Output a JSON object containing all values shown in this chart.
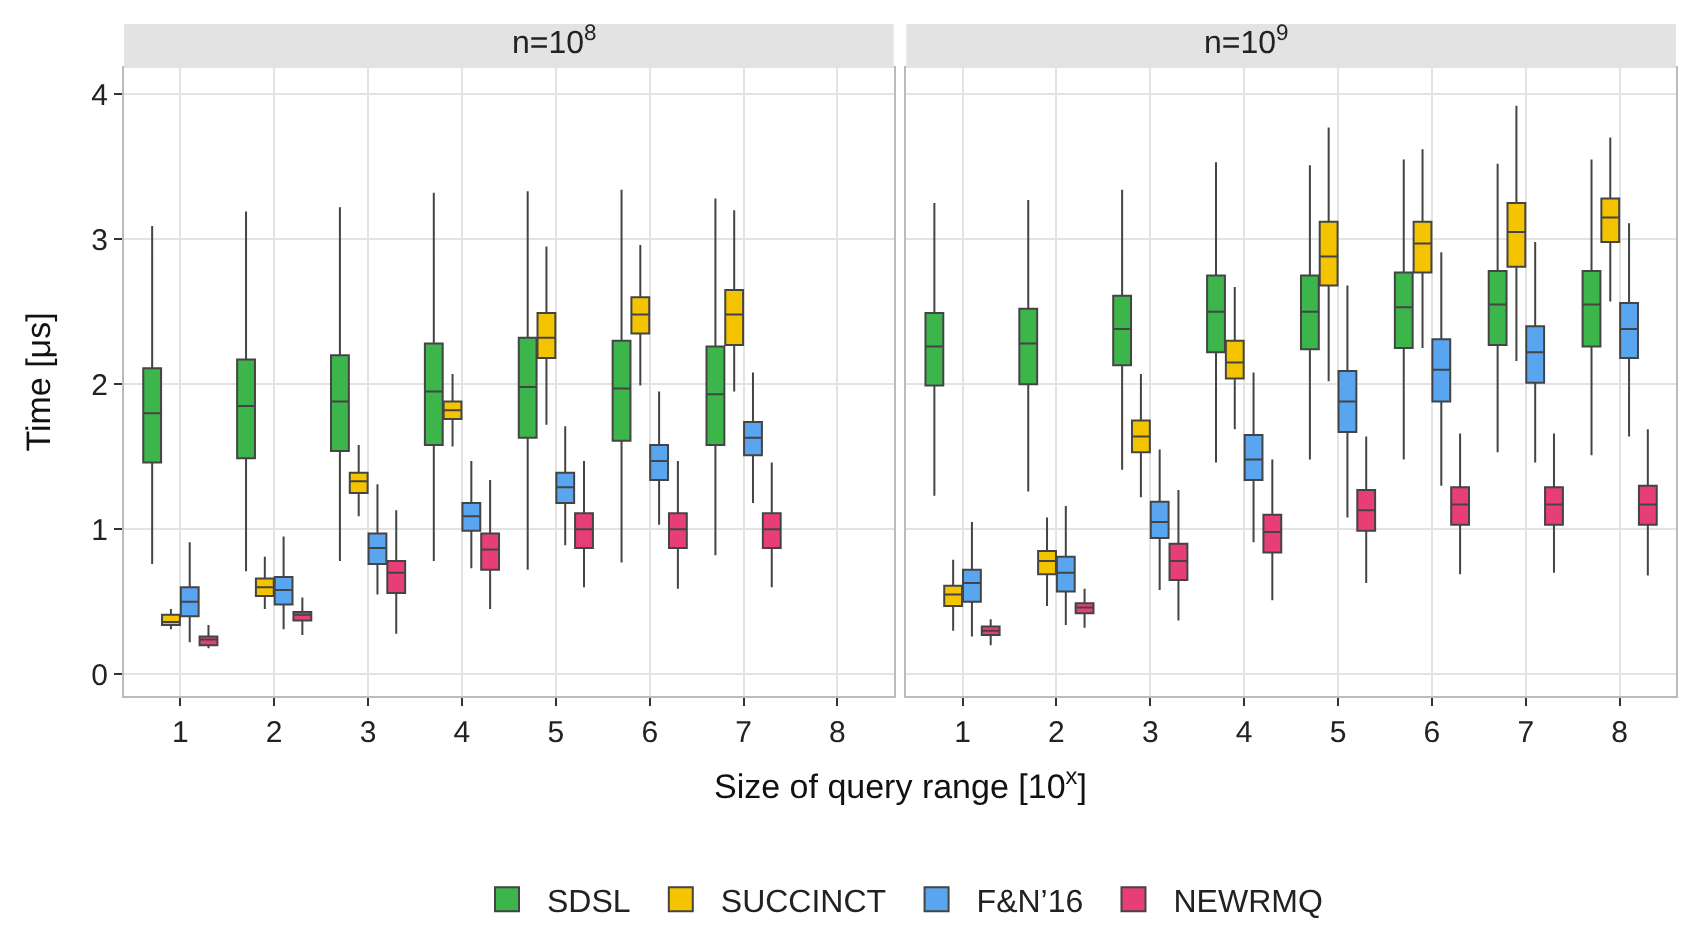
{
  "chart_data": [
    {
      "type": "box",
      "title": "n=10$^{8}$",
      "xlabel": "Size of query range [10$^{x}$]",
      "ylabel": "Time [μs]",
      "categories": [
        "1",
        "2",
        "3",
        "4",
        "5",
        "6",
        "7",
        "8"
      ],
      "ylim": [
        -0.15,
        4.18
      ],
      "yticks": [
        0,
        1,
        2,
        3,
        4
      ],
      "grid": true,
      "legend": "bottom",
      "series": [
        {
          "name": "SDSL",
          "color": "#3cb54a",
          "boxes": [
            {
              "low": 0.76,
              "q1": 1.46,
              "median": 1.8,
              "q3": 2.11,
              "high": 3.09
            },
            {
              "low": 0.71,
              "q1": 1.49,
              "median": 1.85,
              "q3": 2.17,
              "high": 3.19
            },
            {
              "low": 0.78,
              "q1": 1.54,
              "median": 1.88,
              "q3": 2.2,
              "high": 3.22
            },
            {
              "low": 0.78,
              "q1": 1.58,
              "median": 1.95,
              "q3": 2.28,
              "high": 3.32
            },
            {
              "low": 0.72,
              "q1": 1.63,
              "median": 1.98,
              "q3": 2.32,
              "high": 3.33
            },
            {
              "low": 0.77,
              "q1": 1.61,
              "median": 1.97,
              "q3": 2.3,
              "high": 3.34
            },
            {
              "low": 0.82,
              "q1": 1.58,
              "median": 1.93,
              "q3": 2.26,
              "high": 3.28
            },
            null
          ]
        },
        {
          "name": "SUCCINCT",
          "color": "#f5c400",
          "boxes": [
            {
              "low": 0.31,
              "q1": 0.34,
              "median": 0.36,
              "q3": 0.41,
              "high": 0.45
            },
            {
              "low": 0.45,
              "q1": 0.54,
              "median": 0.6,
              "q3": 0.66,
              "high": 0.81
            },
            {
              "low": 1.09,
              "q1": 1.25,
              "median": 1.33,
              "q3": 1.39,
              "high": 1.58
            },
            {
              "low": 1.57,
              "q1": 1.76,
              "median": 1.82,
              "q3": 1.88,
              "high": 2.07
            },
            {
              "low": 1.72,
              "q1": 2.18,
              "median": 2.32,
              "q3": 2.49,
              "high": 2.95
            },
            {
              "low": 1.99,
              "q1": 2.35,
              "median": 2.48,
              "q3": 2.6,
              "high": 2.96
            },
            {
              "low": 1.95,
              "q1": 2.27,
              "median": 2.48,
              "q3": 2.65,
              "high": 3.2
            },
            null
          ]
        },
        {
          "name": "F&N’16",
          "color": "#5aa5f0",
          "boxes": [
            {
              "low": 0.22,
              "q1": 0.4,
              "median": 0.5,
              "q3": 0.6,
              "high": 0.91
            },
            {
              "low": 0.31,
              "q1": 0.48,
              "median": 0.58,
              "q3": 0.67,
              "high": 0.95
            },
            {
              "low": 0.55,
              "q1": 0.76,
              "median": 0.87,
              "q3": 0.97,
              "high": 1.31
            },
            {
              "low": 0.73,
              "q1": 0.99,
              "median": 1.09,
              "q3": 1.18,
              "high": 1.47
            },
            {
              "low": 0.89,
              "q1": 1.18,
              "median": 1.29,
              "q3": 1.39,
              "high": 1.71
            },
            {
              "low": 1.03,
              "q1": 1.34,
              "median": 1.47,
              "q3": 1.58,
              "high": 1.95
            },
            {
              "low": 1.18,
              "q1": 1.51,
              "median": 1.63,
              "q3": 1.74,
              "high": 2.08
            },
            null
          ]
        },
        {
          "name": "NEWRMQ",
          "color": "#e83e76",
          "boxes": [
            {
              "low": 0.18,
              "q1": 0.2,
              "median": 0.24,
              "q3": 0.26,
              "high": 0.34
            },
            {
              "low": 0.27,
              "q1": 0.37,
              "median": 0.41,
              "q3": 0.43,
              "high": 0.53
            },
            {
              "low": 0.28,
              "q1": 0.56,
              "median": 0.7,
              "q3": 0.78,
              "high": 1.13
            },
            {
              "low": 0.45,
              "q1": 0.72,
              "median": 0.86,
              "q3": 0.97,
              "high": 1.34
            },
            {
              "low": 0.6,
              "q1": 0.87,
              "median": 1.0,
              "q3": 1.11,
              "high": 1.47
            },
            {
              "low": 0.59,
              "q1": 0.87,
              "median": 1.0,
              "q3": 1.11,
              "high": 1.47
            },
            {
              "low": 0.6,
              "q1": 0.87,
              "median": 1.0,
              "q3": 1.11,
              "high": 1.46
            },
            null
          ]
        }
      ]
    },
    {
      "type": "box",
      "title": "n=10$^{9}$",
      "categories": [
        "1",
        "2",
        "3",
        "4",
        "5",
        "6",
        "7",
        "8"
      ],
      "ylim": [
        -0.15,
        4.18
      ],
      "yticks": [
        0,
        1,
        2,
        3,
        4
      ],
      "grid": true,
      "tick_labels": "x",
      "series": [
        {
          "color": "#3cb54a",
          "boxes": [
            {
              "low": 1.23,
              "q1": 1.99,
              "median": 2.26,
              "q3": 2.49,
              "high": 3.25
            },
            {
              "low": 1.26,
              "q1": 2.0,
              "median": 2.28,
              "q3": 2.52,
              "high": 3.27
            },
            {
              "low": 1.41,
              "q1": 2.13,
              "median": 2.38,
              "q3": 2.61,
              "high": 3.34
            },
            {
              "low": 1.46,
              "q1": 2.22,
              "median": 2.5,
              "q3": 2.75,
              "high": 3.53
            },
            {
              "low": 1.48,
              "q1": 2.24,
              "median": 2.5,
              "q3": 2.75,
              "high": 3.51
            },
            {
              "low": 1.48,
              "q1": 2.25,
              "median": 2.53,
              "q3": 2.77,
              "high": 3.55
            },
            {
              "low": 1.53,
              "q1": 2.27,
              "median": 2.55,
              "q3": 2.78,
              "high": 3.52
            },
            {
              "low": 1.51,
              "q1": 2.26,
              "median": 2.55,
              "q3": 2.78,
              "high": 3.55
            }
          ]
        },
        {
          "color": "#f5c400",
          "boxes": [
            {
              "low": 0.3,
              "q1": 0.47,
              "median": 0.55,
              "q3": 0.61,
              "high": 0.79
            },
            {
              "low": 0.47,
              "q1": 0.69,
              "median": 0.78,
              "q3": 0.85,
              "high": 1.08
            },
            {
              "low": 1.22,
              "q1": 1.53,
              "median": 1.64,
              "q3": 1.75,
              "high": 2.07
            },
            {
              "low": 1.69,
              "q1": 2.04,
              "median": 2.15,
              "q3": 2.3,
              "high": 2.67
            },
            {
              "low": 2.02,
              "q1": 2.68,
              "median": 2.88,
              "q3": 3.12,
              "high": 3.77
            },
            {
              "low": 2.25,
              "q1": 2.77,
              "median": 2.97,
              "q3": 3.12,
              "high": 3.62
            },
            {
              "low": 2.16,
              "q1": 2.81,
              "median": 3.05,
              "q3": 3.25,
              "high": 3.92
            },
            {
              "low": 2.57,
              "q1": 2.98,
              "median": 3.15,
              "q3": 3.28,
              "high": 3.7
            }
          ]
        },
        {
          "color": "#5aa5f0",
          "boxes": [
            {
              "low": 0.26,
              "q1": 0.5,
              "median": 0.63,
              "q3": 0.72,
              "high": 1.05
            },
            {
              "low": 0.34,
              "q1": 0.57,
              "median": 0.7,
              "q3": 0.81,
              "high": 1.16
            },
            {
              "low": 0.58,
              "q1": 0.94,
              "median": 1.05,
              "q3": 1.19,
              "high": 1.55
            },
            {
              "low": 0.91,
              "q1": 1.34,
              "median": 1.48,
              "q3": 1.65,
              "high": 2.08
            },
            {
              "low": 1.08,
              "q1": 1.67,
              "median": 1.88,
              "q3": 2.09,
              "high": 2.68
            },
            {
              "low": 1.3,
              "q1": 1.88,
              "median": 2.1,
              "q3": 2.31,
              "high": 2.91
            },
            {
              "low": 1.46,
              "q1": 2.01,
              "median": 2.22,
              "q3": 2.4,
              "high": 2.98
            },
            {
              "low": 1.64,
              "q1": 2.18,
              "median": 2.38,
              "q3": 2.56,
              "high": 3.11
            }
          ]
        },
        {
          "color": "#e83e76",
          "boxes": [
            {
              "low": 0.2,
              "q1": 0.27,
              "median": 0.3,
              "q3": 0.33,
              "high": 0.38
            },
            {
              "low": 0.32,
              "q1": 0.42,
              "median": 0.46,
              "q3": 0.49,
              "high": 0.59
            },
            {
              "low": 0.37,
              "q1": 0.65,
              "median": 0.78,
              "q3": 0.9,
              "high": 1.27
            },
            {
              "low": 0.51,
              "q1": 0.84,
              "median": 0.98,
              "q3": 1.1,
              "high": 1.48
            },
            {
              "low": 0.63,
              "q1": 0.99,
              "median": 1.13,
              "q3": 1.27,
              "high": 1.64
            },
            {
              "low": 0.69,
              "q1": 1.03,
              "median": 1.17,
              "q3": 1.29,
              "high": 1.66
            },
            {
              "low": 0.7,
              "q1": 1.03,
              "median": 1.17,
              "q3": 1.29,
              "high": 1.66
            },
            {
              "low": 0.68,
              "q1": 1.03,
              "median": 1.17,
              "q3": 1.3,
              "high": 1.69
            }
          ]
        }
      ]
    }
  ]
}
